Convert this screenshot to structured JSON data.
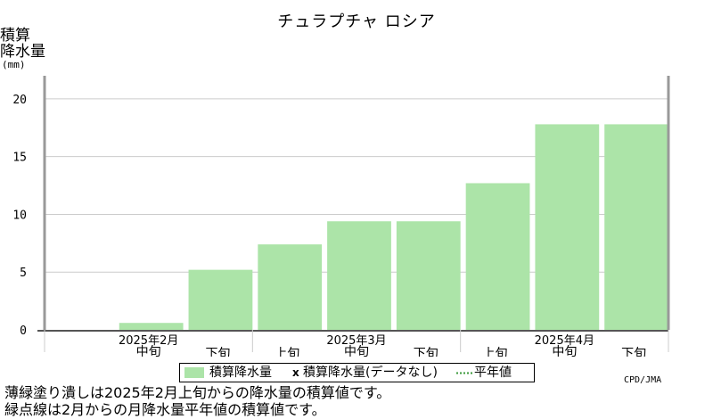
{
  "title": "チュラプチャ ロシア",
  "y_axis": {
    "label_line1": "積算",
    "label_line2": "降水量",
    "unit": "(mm)"
  },
  "legend": {
    "bar_label": "積算降水量",
    "mark": "x",
    "missing_label": "積算降水量(データなし)",
    "normal_label": "平年値"
  },
  "credit": "CPD/JMA",
  "notes": [
    "薄緑塗り潰しは2025年2月上旬からの降水量の積算値です。",
    "緑点線は2月からの月降水量平年値の積算値です。"
  ],
  "colors": {
    "bar": "#ace4a8",
    "grid": "#cccccc",
    "axis": "#555555",
    "frame": "#999999"
  },
  "chart_data": {
    "type": "bar",
    "title": "チュラプチャ ロシア",
    "ylabel": "積算降水量 (mm)",
    "ylim": [
      0,
      22
    ],
    "yticks": [
      0,
      5,
      10,
      15,
      20
    ],
    "grid": true,
    "legend_position": "bottom",
    "categories": [
      "2025年2月 上旬",
      "2025年2月 中旬",
      "2025年2月 下旬",
      "2025年3月 上旬",
      "2025年3月 中旬",
      "2025年3月 下旬",
      "2025年4月 上旬",
      "2025年4月 中旬",
      "2025年4月 下旬"
    ],
    "month_labels": [
      "2025年2月",
      "2025年3月",
      "2025年4月"
    ],
    "period_labels": [
      "上旬",
      "中旬",
      "下旬"
    ],
    "visible_period_labels": [
      "中旬",
      "下旬",
      "上旬",
      "中旬",
      "下旬",
      "上旬",
      "中旬",
      "下旬"
    ],
    "series": [
      {
        "name": "積算降水量",
        "values": [
          null,
          0.6,
          5.2,
          7.4,
          9.4,
          9.4,
          12.7,
          17.8,
          17.8
        ]
      }
    ]
  }
}
